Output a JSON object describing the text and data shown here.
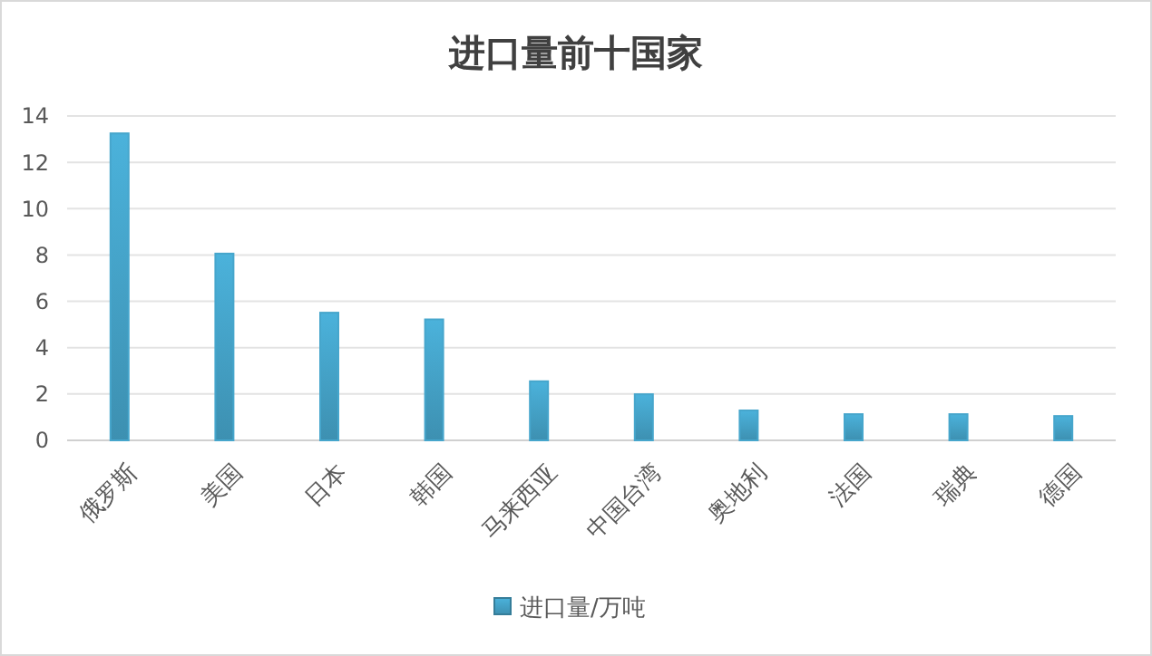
{
  "chart_data": {
    "type": "bar",
    "title": "进口量前十国家",
    "categories": [
      "俄罗斯",
      "美国",
      "日本",
      "韩国",
      "马来西亚",
      "中国台湾",
      "奥地利",
      "法国",
      "瑞典",
      "德国"
    ],
    "series": [
      {
        "name": "进口量/万吨",
        "color": "#46a6cc",
        "values": [
          13.25,
          8.06,
          5.51,
          5.22,
          2.55,
          1.99,
          1.29,
          1.13,
          1.13,
          1.05
        ]
      }
    ],
    "ylim": [
      0,
      14
    ],
    "yticks": [
      0,
      2,
      4,
      6,
      8,
      10,
      12,
      14
    ],
    "grid": "y",
    "legend": "bottom"
  }
}
